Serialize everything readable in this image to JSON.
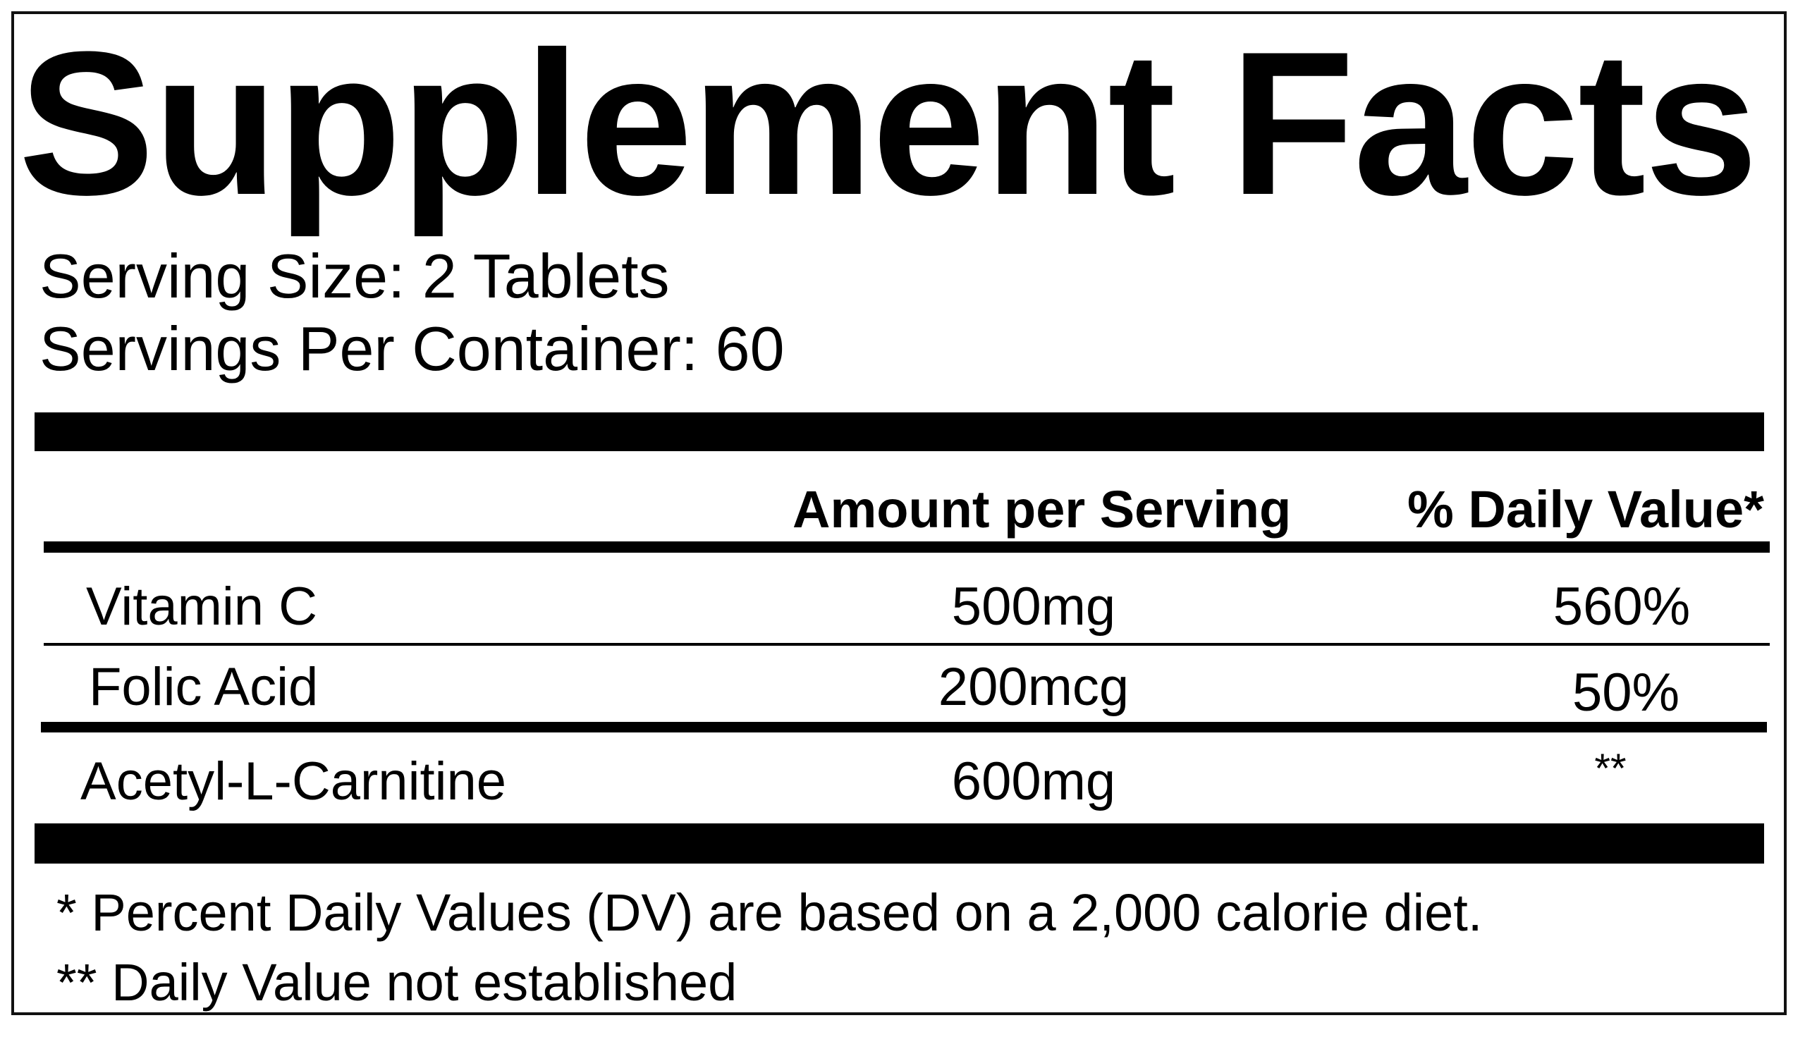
{
  "title": "Supplement Facts",
  "serving_size": "Serving Size: 2 Tablets",
  "servings_per_container": "Servings Per Container: 60",
  "table": {
    "headers": {
      "amount": "Amount per Serving",
      "daily_value": "% Daily Value*"
    },
    "rows": [
      {
        "name": "Vitamin C",
        "amount": "500mg",
        "dv": "560%"
      },
      {
        "name": "Folic Acid",
        "amount": "200mcg",
        "dv": "50%"
      },
      {
        "name": "Acetyl-L-Carnitine",
        "amount": "600mg",
        "dv": "**"
      }
    ]
  },
  "footnotes": [
    "* Percent Daily Values (DV) are based on a 2,000 calorie diet.",
    "** Daily Value not established"
  ]
}
